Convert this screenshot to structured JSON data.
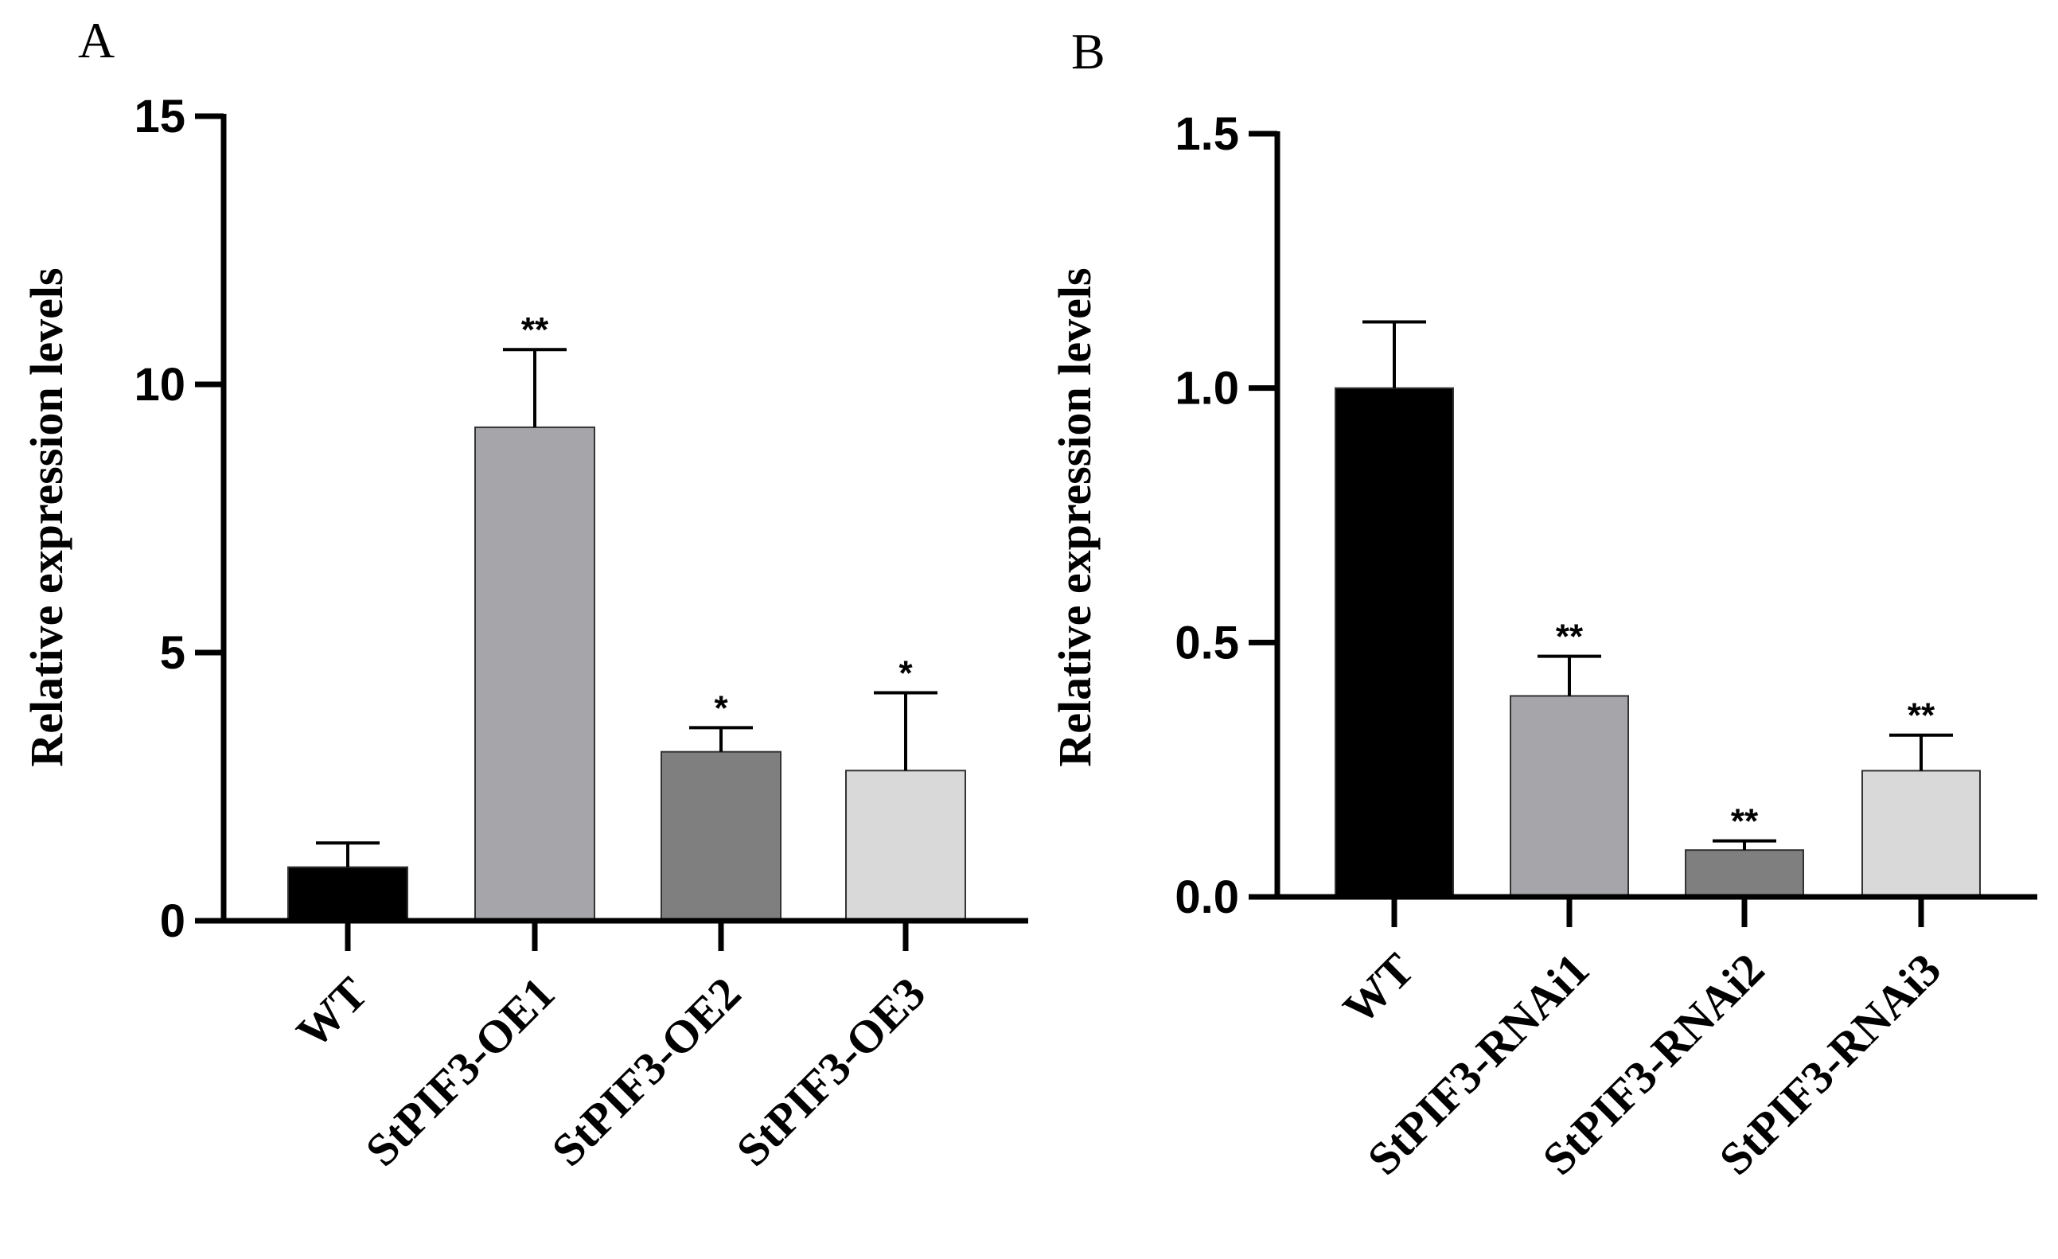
{
  "chart_data": [
    {
      "panel": "A",
      "type": "bar",
      "title": "",
      "xlabel": "",
      "ylabel": "Relative expression levels",
      "ylim": [
        0,
        15
      ],
      "yticks": [
        0,
        5,
        10,
        15
      ],
      "ytick_labels": [
        "0",
        "5",
        "10",
        "15"
      ],
      "grid": false,
      "legend": "none",
      "categories": [
        "WT",
        "StPIF3-OE1",
        "StPIF3-OE2",
        "StPIF3-OE3"
      ],
      "values": [
        1.0,
        9.2,
        3.15,
        2.8
      ],
      "errors": [
        0.45,
        1.45,
        0.45,
        1.45
      ],
      "significance": [
        "",
        "**",
        "*",
        "*"
      ],
      "colors": [
        "#000000",
        "#a6a6aa",
        "#7f7f7f",
        "#d9d9d9"
      ]
    },
    {
      "panel": "B",
      "type": "bar",
      "title": "",
      "xlabel": "",
      "ylabel": "Relative expression levels",
      "ylim": [
        0,
        1.5
      ],
      "yticks": [
        0,
        0.5,
        1.0,
        1.5
      ],
      "ytick_labels": [
        "0.0",
        "0.5",
        "1.0",
        "1.5"
      ],
      "grid": false,
      "legend": "none",
      "categories": [
        "WT",
        "StPIF3-RNAi1",
        "StPIF3-RNAi2",
        "StPIF3-RNAi3"
      ],
      "values": [
        1.0,
        0.395,
        0.092,
        0.248
      ],
      "errors": [
        0.13,
        0.078,
        0.018,
        0.07
      ],
      "significance": [
        "",
        "**",
        "**",
        "**"
      ],
      "colors": [
        "#000000",
        "#a6a6aa",
        "#7f7f7f",
        "#d9d9d9"
      ]
    }
  ]
}
